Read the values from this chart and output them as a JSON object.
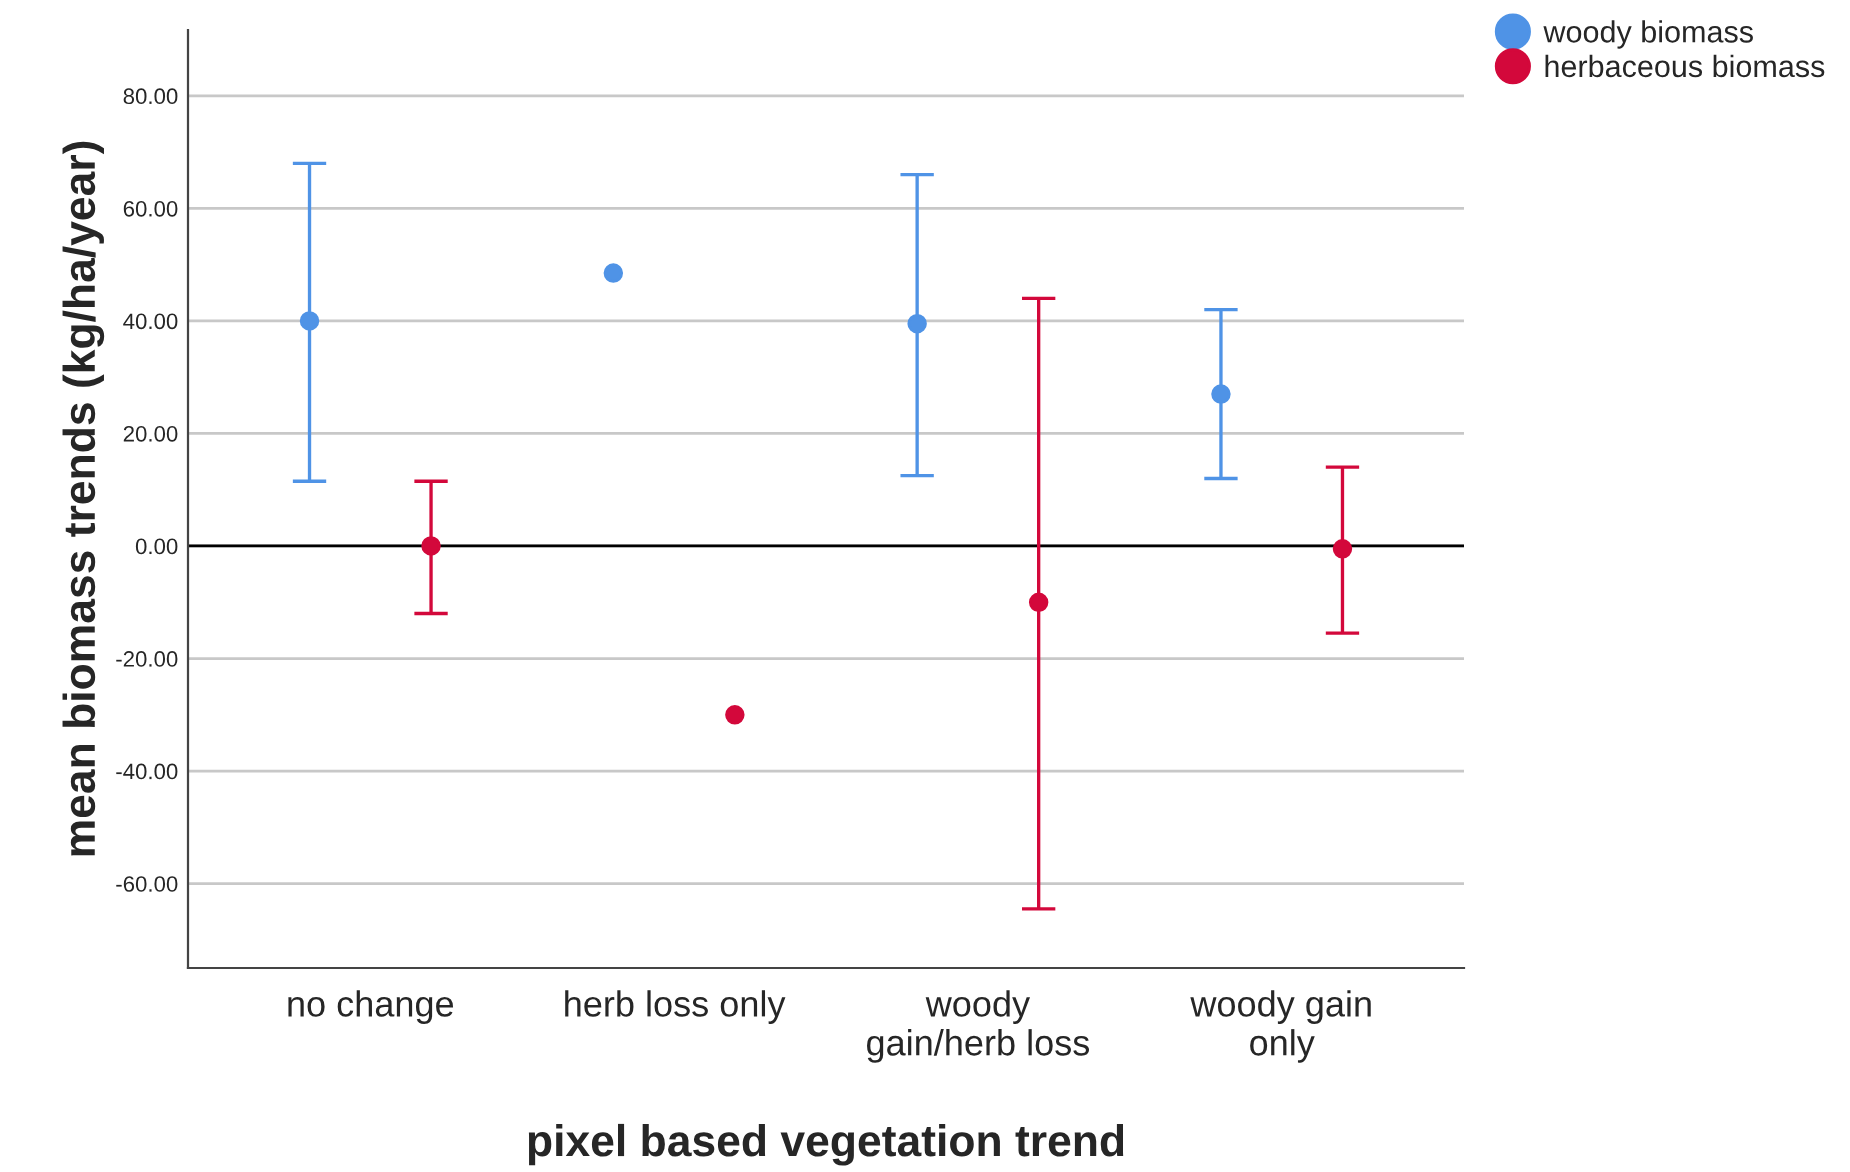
{
  "chart_data": {
    "type": "scatter",
    "xlabel": "pixel based vegetation trend",
    "ylabel": "mean biomass trends (kg/ha/year)",
    "categories": [
      "no change",
      "herb loss only",
      "woody\ngain/herb loss",
      "woody gain\nonly"
    ],
    "series": [
      {
        "name": "woody biomass",
        "color": "#4f93e6",
        "values": [
          40,
          48.5,
          39.5,
          27
        ],
        "errors": [
          [
            11.5,
            68
          ],
          null,
          [
            12.5,
            66
          ],
          [
            12,
            42
          ]
        ]
      },
      {
        "name": "herbaceous biomass",
        "color": "#d3083b",
        "values": [
          0,
          -30,
          -10,
          -0.5
        ],
        "errors": [
          [
            -12,
            11.5
          ],
          null,
          [
            -64.5,
            44
          ],
          [
            -15.5,
            14
          ]
        ]
      }
    ],
    "ylim": [
      -75,
      91.7
    ],
    "yticks": [
      {
        "value": -60,
        "label": "-60.00"
      },
      {
        "value": -40,
        "label": "-40.00"
      },
      {
        "value": -20,
        "label": "-20.00"
      },
      {
        "value": 0,
        "label": "0.00"
      },
      {
        "value": 20,
        "label": "20.00"
      },
      {
        "value": 40,
        "label": "40.00"
      },
      {
        "value": 60,
        "label": "60.00"
      },
      {
        "value": 80,
        "label": "80.00"
      }
    ],
    "ref_lines": [
      {
        "axis": "y",
        "value": 0,
        "color": "#000000"
      }
    ],
    "grid": "y",
    "legend": "top right",
    "marker": "circle"
  }
}
